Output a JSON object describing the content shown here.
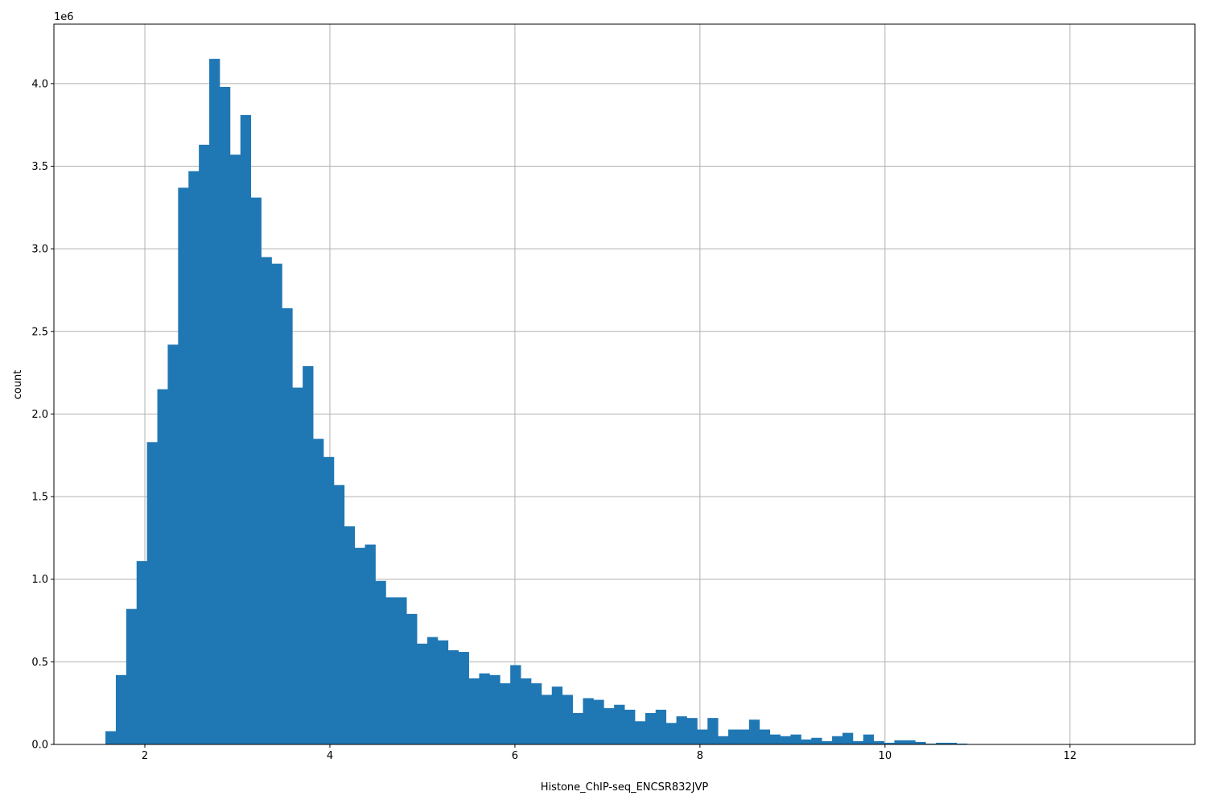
{
  "chart_data": {
    "type": "bar",
    "subtype": "histogram",
    "title": "",
    "xlabel": "Histone_ChIP-seq_ENCSR832JVP",
    "ylabel": "count",
    "y_offset_label": "1e6",
    "xlim": [
      1.017,
      13.35
    ],
    "ylim": [
      0,
      4360000
    ],
    "grid": true,
    "bar_color": "#1f77b4",
    "bin_start": 1.574,
    "bin_width": 0.1122,
    "x_ticks": [
      2,
      4,
      6,
      8,
      10,
      12
    ],
    "x_tick_labels": [
      "2",
      "4",
      "6",
      "8",
      "10",
      "12"
    ],
    "y_ticks": [
      0,
      500000,
      1000000,
      1500000,
      2000000,
      2500000,
      3000000,
      3500000,
      4000000
    ],
    "y_tick_labels": [
      "0.0",
      "0.5",
      "1.0",
      "1.5",
      "2.0",
      "2.5",
      "3.0",
      "3.5",
      "4.0"
    ],
    "values": [
      80000,
      420000,
      820000,
      1110000,
      1830000,
      2150000,
      2420000,
      3370000,
      3470000,
      3630000,
      4150000,
      3980000,
      3570000,
      3810000,
      3310000,
      2950000,
      2910000,
      2640000,
      2160000,
      2290000,
      1850000,
      1740000,
      1570000,
      1320000,
      1190000,
      1210000,
      990000,
      890000,
      890000,
      790000,
      610000,
      650000,
      630000,
      570000,
      560000,
      400000,
      430000,
      420000,
      370000,
      480000,
      400000,
      370000,
      300000,
      350000,
      300000,
      190000,
      280000,
      270000,
      220000,
      240000,
      210000,
      140000,
      190000,
      210000,
      130000,
      170000,
      160000,
      90000,
      160000,
      50000,
      90000,
      90000,
      150000,
      90000,
      60000,
      50000,
      60000,
      30000,
      40000,
      20000,
      50000,
      70000,
      20000,
      60000,
      20000,
      10000,
      25000,
      25000,
      15000,
      5000,
      10000,
      10000,
      5000,
      2000,
      1000,
      1000,
      1000,
      1000,
      1000,
      1000,
      1000,
      1000,
      1000,
      1000,
      1000,
      1000,
      1000,
      1000,
      1000,
      1000
    ]
  }
}
